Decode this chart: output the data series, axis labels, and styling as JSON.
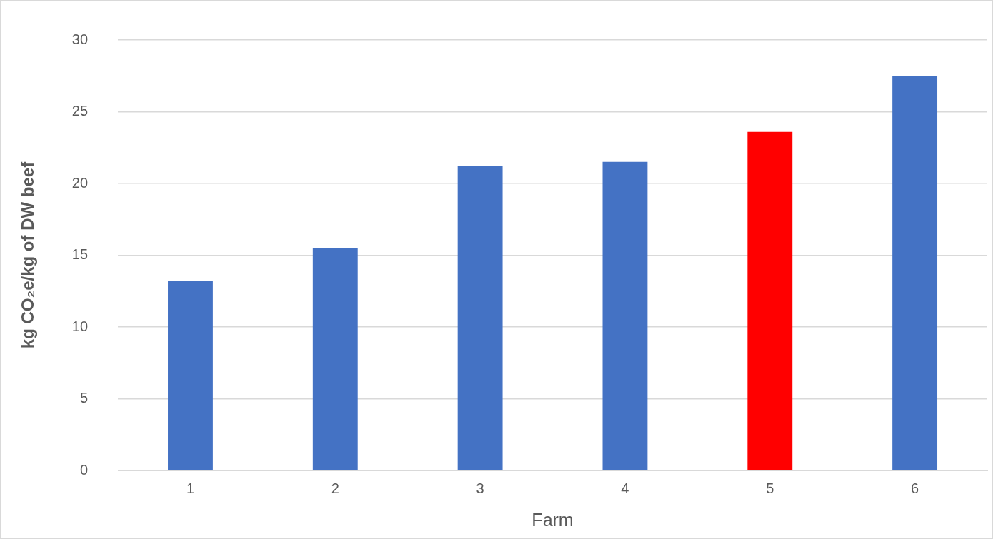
{
  "chart_data": {
    "type": "bar",
    "xlabel": "Farm",
    "ylabel": "kg CO₂e/kg of DW beef",
    "categories": [
      "1",
      "2",
      "3",
      "4",
      "5",
      "6"
    ],
    "values": [
      13.2,
      15.5,
      21.2,
      21.5,
      23.6,
      27.5
    ],
    "colors": [
      "#4472c4",
      "#4472c4",
      "#4472c4",
      "#4472c4",
      "#ff0000",
      "#4472c4"
    ],
    "ylim": [
      0,
      30
    ],
    "yticks": [
      0,
      5,
      10,
      15,
      20,
      25,
      30
    ],
    "grid": "y",
    "legend": false
  }
}
